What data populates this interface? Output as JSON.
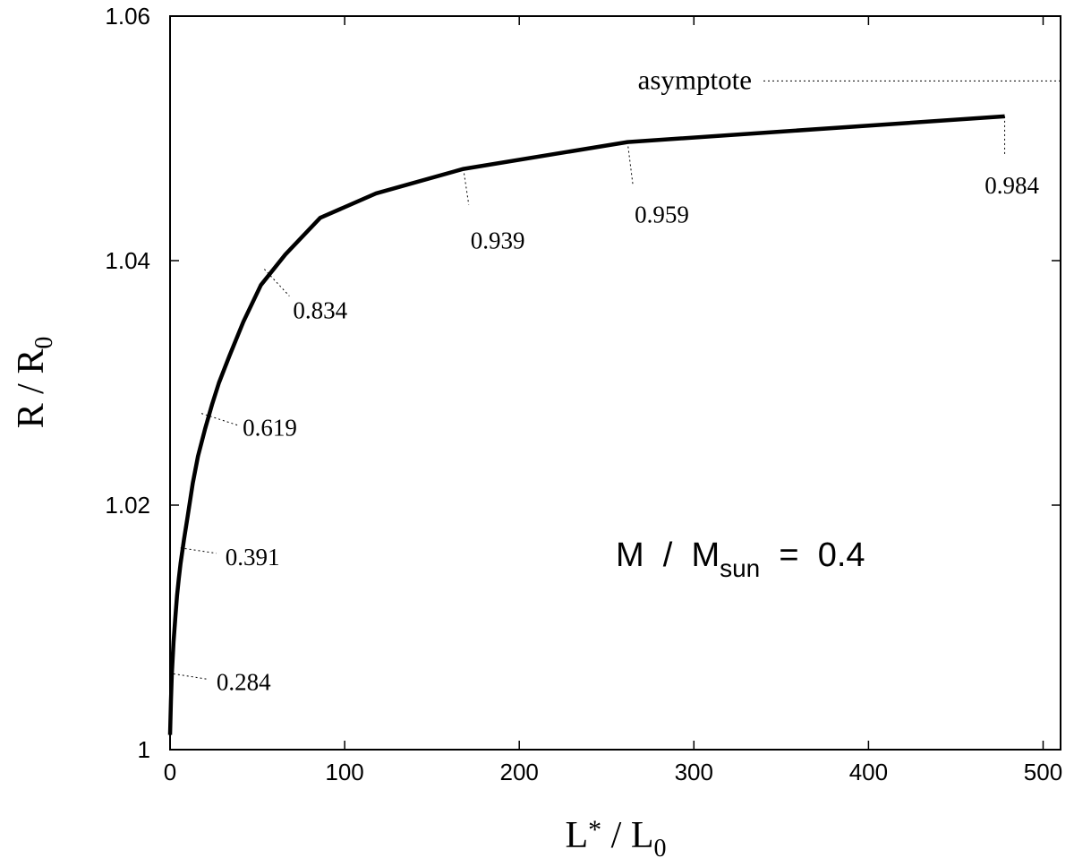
{
  "chart_data": {
    "type": "line",
    "xlabel": {
      "main": "L",
      "sub": "*",
      "tail": " / L",
      "sub2": "0"
    },
    "ylabel": {
      "main": "R / R",
      "sub": "0"
    },
    "xlim": [
      0,
      510
    ],
    "ylim": [
      1.0,
      1.06
    ],
    "x_ticks": [
      0,
      100,
      200,
      300,
      400,
      500
    ],
    "x_tick_labels": [
      "0",
      "100",
      "200",
      "300",
      "400",
      "500"
    ],
    "y_ticks": [
      1.0,
      1.02,
      1.04,
      1.06
    ],
    "y_tick_labels": [
      "1",
      "1.02",
      "1.04",
      "1.06"
    ],
    "grid": false,
    "series": [
      {
        "x": [
          0,
          0.5,
          1,
          2,
          3,
          4,
          5,
          6,
          8,
          10,
          13,
          16,
          20,
          24,
          28,
          34,
          42,
          52,
          66,
          86,
          118,
          168,
          262,
          478
        ],
        "y": [
          1.0012,
          1.004,
          1.0062,
          1.0088,
          1.0108,
          1.0126,
          1.014,
          1.0152,
          1.0172,
          1.019,
          1.0218,
          1.024,
          1.0262,
          1.0282,
          1.03,
          1.0322,
          1.035,
          1.038,
          1.0405,
          1.0435,
          1.0455,
          1.0475,
          1.0497,
          1.0518
        ],
        "color": "#000000"
      }
    ],
    "point_labels": [
      {
        "x": 2,
        "y": 1.0062,
        "label": "0.284"
      },
      {
        "x": 6,
        "y": 1.0165,
        "label": "0.391"
      },
      {
        "x": 18,
        "y": 1.0275,
        "label": "0.619"
      },
      {
        "x": 54,
        "y": 1.0393,
        "label": "0.834"
      },
      {
        "x": 168,
        "y": 1.0475,
        "label": "0.939"
      },
      {
        "x": 262,
        "y": 1.0497,
        "label": "0.959"
      },
      {
        "x": 478,
        "y": 1.0518,
        "label": "0.984"
      }
    ],
    "annotations": {
      "asymptote": {
        "label": "asymptote",
        "y": 1.0547
      },
      "mass": {
        "main": "M  /  M",
        "sub": "sun",
        "tail": "  =  0.4"
      }
    }
  }
}
